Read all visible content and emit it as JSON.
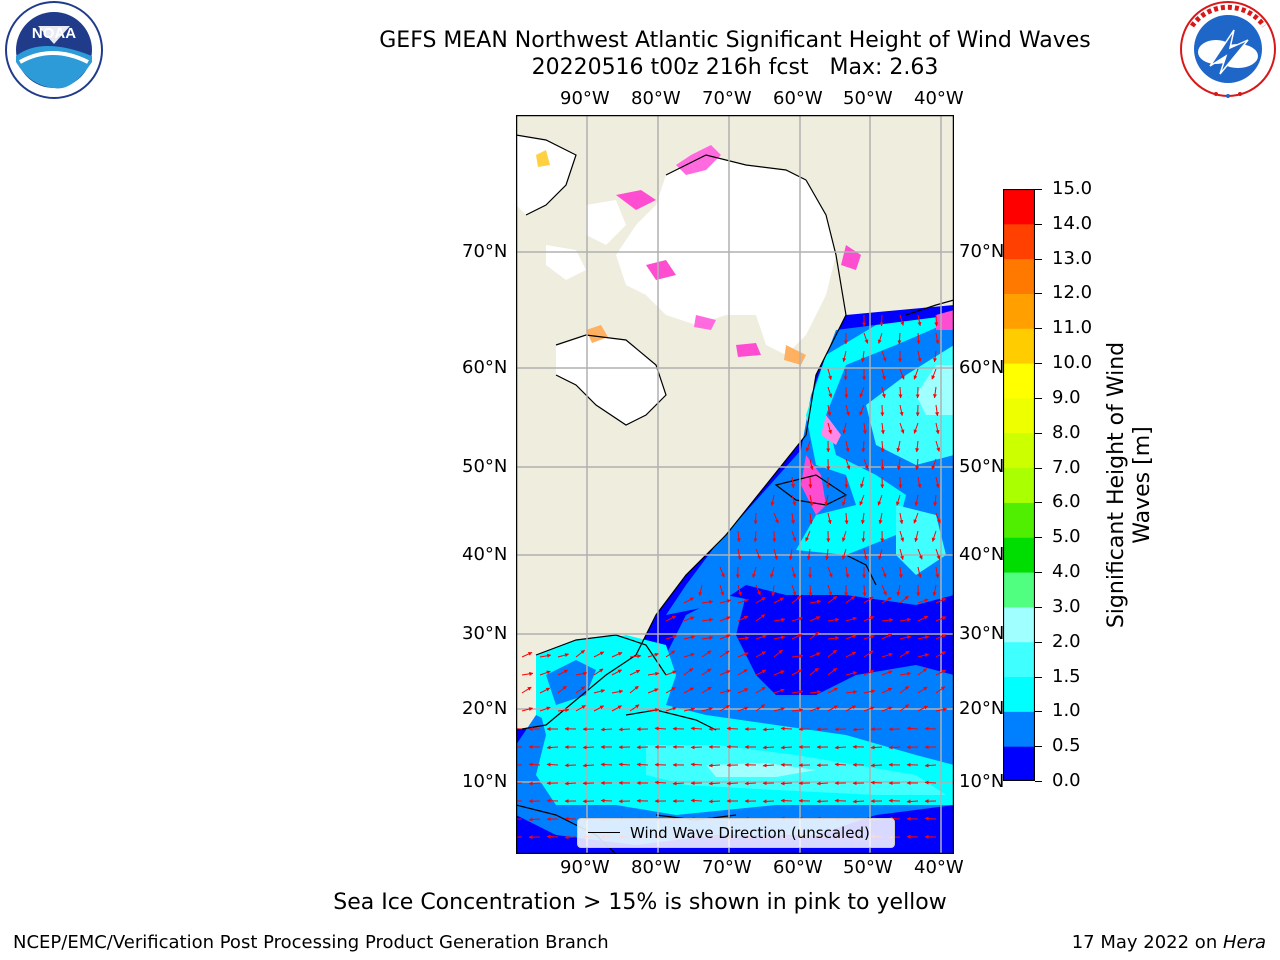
{
  "header": {
    "title_line1": "GEFS MEAN Northwest Atlantic Significant Height of Wind Waves",
    "title_line2": "20220516 t00z 216h fcst   Max: 2.63"
  },
  "logos": {
    "left": {
      "text": "NOAA",
      "ring_text": "NATIONAL OCEANIC AND ATMOSPHERIC ADMINISTRATION · U.S. DEPARTMENT OF COMMERCE"
    },
    "right": {
      "ring_text": "NATIONAL WEATHER SERVICE"
    }
  },
  "map": {
    "lon_labels": [
      "90°W",
      "80°W",
      "70°W",
      "60°W",
      "50°W",
      "40°W"
    ],
    "lat_labels": [
      "70°N",
      "60°N",
      "50°N",
      "40°N",
      "30°N",
      "20°N",
      "10°N"
    ],
    "legend_label": "Wind Wave Direction (unscaled)",
    "colors": {
      "land": "#efedde",
      "ice_free_land": "#ffffff",
      "grid": "#b0b0b0",
      "arrow": "#ff0000"
    }
  },
  "colorbar": {
    "label": "Significant Height of Wind\nWaves [m]",
    "ticks": [
      "0.0",
      "0.5",
      "1.0",
      "1.5",
      "2.0",
      "3.0",
      "4.0",
      "5.0",
      "6.0",
      "7.0",
      "8.0",
      "9.0",
      "10.0",
      "11.0",
      "12.0",
      "13.0",
      "14.0",
      "15.0"
    ],
    "colors": [
      "#0000ff",
      "#0080ff",
      "#00ffff",
      "#40ffff",
      "#a0ffff",
      "#50ff80",
      "#00dd00",
      "#50ee00",
      "#aaff00",
      "#ccff00",
      "#eeff00",
      "#ffff00",
      "#ffcc00",
      "#ffa000",
      "#ff7800",
      "#ff4000",
      "#ff0000"
    ]
  },
  "notes": {
    "sea_ice": "Sea Ice Concentration > 15% is shown in pink to yellow"
  },
  "footer": {
    "left": "NCEP/EMC/Verification Post Processing Product Generation Branch",
    "right_prefix": "17 May 2022 on ",
    "right_italic": "Hera"
  }
}
